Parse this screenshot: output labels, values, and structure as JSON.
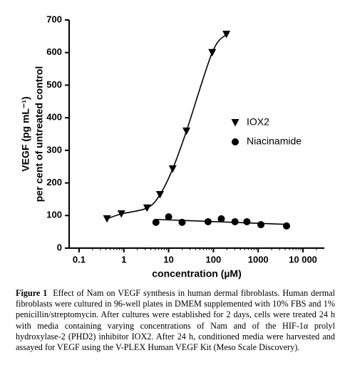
{
  "chart_data": {
    "type": "scatter",
    "x_label": "concentration (µM)",
    "y_label": [
      "VEGF (pg mL⁻¹)",
      "per cent of untreated control"
    ],
    "xscale": "log",
    "xlim": [
      0.06,
      30000
    ],
    "xticks": [
      0.1,
      1,
      10,
      100,
      1000,
      {
        "value": 10000,
        "label": "10 000"
      }
    ],
    "ylim": [
      0,
      700
    ],
    "yticks": [
      0,
      100,
      200,
      300,
      400,
      500,
      600,
      700
    ],
    "legend_position": "center right",
    "series": [
      {
        "name": "IOX2",
        "color": "#000000",
        "marker": "triangle-down",
        "fit": "smooth",
        "x": [
          0.42,
          0.88,
          3.3,
          6.4,
          12.3,
          25,
          94,
          195
        ],
        "values": [
          90,
          105,
          123,
          164,
          243,
          359,
          600,
          656
        ]
      },
      {
        "name": "Niacinamide",
        "color": "#000000",
        "marker": "circle",
        "fit": "linear",
        "x": [
          5.2,
          10,
          20,
          76,
          150,
          303,
          560,
          1150,
          4300
        ],
        "values": [
          79,
          96,
          79,
          81,
          90,
          81,
          81,
          72,
          68
        ]
      }
    ]
  },
  "caption": {
    "label": "Figure 1",
    "text": "Effect of Nam on VEGF synthesis in human dermal fibroblasts. Human dermal fibroblasts were cultured in 96-well plates in DMEM supplemented with 10% FBS and 1% penicillin/streptomycin. After cultures were established for 2 days, cells were treated 24 h with media containing varying concentrations of Nam and of the HIF-1α prolyl hydroxylase-2 (PHD2) inhibitor IOX2. After 24 h, conditioned media were harvested and assayed for VEGF using the V-PLEX Human VEGF Kit (Meso Scale Discovery)."
  }
}
